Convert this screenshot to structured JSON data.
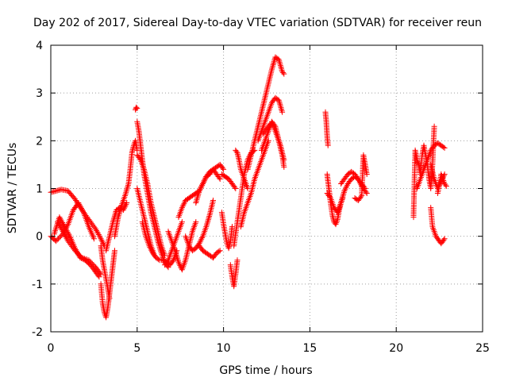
{
  "chart_data": {
    "type": "scatter",
    "title": "Day 202 of 2017, Sidereal Day-to-day VTEC variation (SDTVAR) for receiver reun",
    "xlabel": "GPS time / hours",
    "ylabel": "SDTVAR / TECUs",
    "xlim": [
      0,
      25
    ],
    "ylim": [
      -2,
      4
    ],
    "xticks": [
      "0",
      "5",
      "10",
      "15",
      "20",
      "25"
    ],
    "yticks": [
      "-2",
      "-1",
      "0",
      "1",
      "2",
      "3",
      "4"
    ],
    "grid": true,
    "marker": "+",
    "color": "#ff0000",
    "series": [
      {
        "name": "SDTVAR",
        "tracks": [
          {
            "x": [
              0.0,
              0.3,
              0.6,
              1.0,
              1.4,
              1.8,
              2.2,
              2.6,
              2.9,
              3.1
            ],
            "y": [
              0.92,
              0.95,
              0.98,
              0.95,
              0.78,
              0.55,
              0.35,
              0.15,
              -0.05,
              -0.2
            ]
          },
          {
            "x": [
              0.0,
              0.3,
              0.7,
              1.0,
              1.3,
              1.6,
              1.9,
              2.2,
              2.5
            ],
            "y": [
              0.0,
              -0.1,
              0.05,
              0.25,
              0.55,
              0.7,
              0.5,
              0.2,
              -0.05
            ]
          },
          {
            "x": [
              0.2,
              0.5,
              0.8,
              1.1,
              1.4,
              1.7,
              2.0,
              2.3,
              2.6,
              2.8
            ],
            "y": [
              0.05,
              0.4,
              0.2,
              0.0,
              -0.25,
              -0.45,
              -0.5,
              -0.6,
              -0.75,
              -0.85
            ]
          },
          {
            "x": [
              0.4,
              0.7,
              1.0,
              1.4,
              1.8,
              2.2,
              2.6,
              2.9
            ],
            "y": [
              0.3,
              0.1,
              -0.1,
              -0.3,
              -0.45,
              -0.5,
              -0.65,
              -0.8
            ]
          },
          {
            "x": [
              2.9,
              3.0,
              3.1,
              3.2,
              3.3,
              3.4,
              3.5,
              3.6,
              3.7
            ],
            "y": [
              -1.0,
              -1.4,
              -1.6,
              -1.7,
              -1.5,
              -1.2,
              -0.9,
              -0.6,
              -0.3
            ]
          },
          {
            "x": [
              2.9,
              3.0,
              3.2,
              3.4
            ],
            "y": [
              -0.2,
              -0.5,
              -0.9,
              -1.3
            ]
          },
          {
            "x": [
              3.7,
              3.9,
              4.1,
              4.3,
              4.5,
              4.6,
              4.7,
              4.8,
              4.9,
              5.0
            ],
            "y": [
              0.0,
              0.4,
              0.65,
              0.85,
              1.1,
              1.4,
              1.75,
              1.9,
              2.0,
              1.8
            ]
          },
          {
            "x": [
              3.2,
              3.4,
              3.6,
              3.8,
              4.0,
              4.2,
              4.4
            ],
            "y": [
              -0.3,
              0.0,
              0.3,
              0.55,
              0.6,
              0.55,
              0.7
            ]
          },
          {
            "x": [
              4.9,
              4.95,
              5.0
            ],
            "y": [
              2.65,
              2.7,
              2.68
            ]
          },
          {
            "x": [
              5.0,
              5.1,
              5.2,
              5.3,
              5.4,
              5.6,
              5.8,
              6.0,
              6.2,
              6.4,
              6.6,
              6.8
            ],
            "y": [
              2.4,
              2.2,
              1.9,
              1.6,
              1.3,
              0.9,
              0.5,
              0.2,
              -0.1,
              -0.35,
              -0.55,
              -0.65
            ]
          },
          {
            "x": [
              5.0,
              5.2,
              5.4,
              5.6,
              5.8,
              6.0,
              6.2,
              6.4,
              6.6
            ],
            "y": [
              1.7,
              1.6,
              1.4,
              1.1,
              0.7,
              0.4,
              0.1,
              -0.2,
              -0.4
            ]
          },
          {
            "x": [
              5.0,
              5.2,
              5.4,
              5.6,
              5.8,
              6.0
            ],
            "y": [
              1.0,
              0.7,
              0.4,
              0.1,
              -0.2,
              -0.4
            ]
          },
          {
            "x": [
              5.3,
              5.5,
              5.7,
              5.9,
              6.1,
              6.3,
              6.5,
              6.7,
              6.9,
              7.1,
              7.3
            ],
            "y": [
              0.3,
              0.0,
              -0.2,
              -0.35,
              -0.45,
              -0.5,
              -0.5,
              -0.55,
              -0.6,
              -0.5,
              -0.3
            ]
          },
          {
            "x": [
              6.8,
              7.0,
              7.2,
              7.4,
              7.6,
              7.8,
              8.0,
              8.2,
              8.4
            ],
            "y": [
              0.1,
              -0.1,
              -0.3,
              -0.55,
              -0.7,
              -0.5,
              -0.2,
              0.1,
              0.3
            ]
          },
          {
            "x": [
              6.6,
              6.8,
              7.0,
              7.2,
              7.4,
              7.6
            ],
            "y": [
              -0.6,
              -0.5,
              -0.3,
              -0.1,
              0.1,
              0.3
            ]
          },
          {
            "x": [
              7.4,
              7.6,
              7.8,
              8.0,
              8.2,
              8.4,
              8.6,
              8.8,
              9.0,
              9.2,
              9.4,
              9.6,
              9.8
            ],
            "y": [
              0.4,
              0.6,
              0.75,
              0.8,
              0.85,
              0.9,
              0.95,
              1.1,
              1.25,
              1.35,
              1.4,
              1.3,
              1.2
            ]
          },
          {
            "x": [
              7.8,
              8.0,
              8.2,
              8.4,
              8.6,
              8.8,
              9.0,
              9.2,
              9.4
            ],
            "y": [
              0.0,
              -0.2,
              -0.3,
              -0.25,
              -0.15,
              0.0,
              0.2,
              0.45,
              0.75
            ]
          },
          {
            "x": [
              8.6,
              8.8,
              9.0,
              9.2,
              9.4,
              9.6,
              9.8
            ],
            "y": [
              -0.2,
              -0.3,
              -0.35,
              -0.4,
              -0.45,
              -0.35,
              -0.3
            ]
          },
          {
            "x": [
              8.4,
              8.6,
              8.8,
              9.0,
              9.2,
              9.4,
              9.6,
              9.8,
              10.0
            ],
            "y": [
              0.7,
              0.95,
              1.1,
              1.25,
              1.3,
              1.4,
              1.45,
              1.5,
              1.4
            ]
          },
          {
            "x": [
              9.9,
              10.1,
              10.3,
              10.5,
              10.7
            ],
            "y": [
              1.3,
              1.25,
              1.2,
              1.1,
              1.0
            ]
          },
          {
            "x": [
              9.9,
              10.0,
              10.1,
              10.2,
              10.3,
              10.4,
              10.5
            ],
            "y": [
              0.5,
              0.25,
              0.05,
              -0.15,
              -0.25,
              -0.1,
              0.2
            ]
          },
          {
            "x": [
              10.4,
              10.5,
              10.6,
              10.7,
              10.8
            ],
            "y": [
              -0.6,
              -0.85,
              -1.05,
              -0.8,
              -0.5
            ]
          },
          {
            "x": [
              10.6,
              10.8,
              11.0,
              11.2,
              11.4,
              11.6,
              11.8
            ],
            "y": [
              -0.2,
              0.3,
              0.8,
              1.3,
              1.6,
              1.75,
              1.8
            ]
          },
          {
            "x": [
              10.7,
              10.8,
              10.9,
              11.0,
              11.2,
              11.4
            ],
            "y": [
              1.8,
              1.75,
              1.6,
              1.4,
              1.2,
              1.0
            ]
          },
          {
            "x": [
              11.0,
              11.2,
              11.4,
              11.6,
              11.8,
              12.0,
              12.2,
              12.4,
              12.6
            ],
            "y": [
              0.2,
              0.5,
              0.7,
              0.9,
              1.2,
              1.4,
              1.6,
              1.8,
              2.0
            ]
          },
          {
            "x": [
              11.4,
              11.6,
              11.8,
              12.0,
              12.2,
              12.4,
              12.6,
              12.8,
              13.0,
              13.2,
              13.4,
              13.5
            ],
            "y": [
              1.4,
              1.7,
              2.0,
              2.3,
              2.6,
              2.9,
              3.2,
              3.5,
              3.75,
              3.7,
              3.45,
              3.4
            ]
          },
          {
            "x": [
              12.0,
              12.2,
              12.4,
              12.6,
              12.8,
              13.0,
              13.2,
              13.4
            ],
            "y": [
              2.0,
              2.2,
              2.4,
              2.6,
              2.8,
              2.9,
              2.85,
              2.6
            ]
          },
          {
            "x": [
              12.2,
              12.4,
              12.6,
              12.8,
              13.0,
              13.2,
              13.4,
              13.5
            ],
            "y": [
              1.8,
              2.0,
              2.2,
              2.4,
              2.3,
              2.0,
              1.7,
              1.45
            ]
          },
          {
            "x": [
              12.3,
              12.5,
              12.7,
              12.9,
              13.1,
              13.3,
              13.5
            ],
            "y": [
              2.15,
              2.25,
              2.35,
              2.3,
              2.1,
              1.9,
              1.6
            ]
          },
          {
            "x": [
              15.9,
              15.95,
              16.0,
              16.05
            ],
            "y": [
              2.6,
              2.4,
              2.1,
              1.9
            ]
          },
          {
            "x": [
              16.0,
              16.1,
              16.2,
              16.3,
              16.4,
              16.5,
              16.6,
              16.7,
              16.8,
              16.9
            ],
            "y": [
              1.3,
              1.0,
              0.7,
              0.45,
              0.3,
              0.25,
              0.35,
              0.55,
              0.7,
              0.8
            ]
          },
          {
            "x": [
              16.0,
              16.2,
              16.4,
              16.6,
              16.8,
              17.0,
              17.2,
              17.4,
              17.6,
              17.8,
              18.0,
              18.2
            ],
            "y": [
              0.9,
              0.8,
              0.6,
              0.5,
              0.7,
              0.95,
              1.1,
              1.2,
              1.25,
              1.2,
              1.1,
              1.0
            ]
          },
          {
            "x": [
              16.8,
              17.0,
              17.2,
              17.4,
              17.6,
              17.8,
              18.0,
              18.2,
              18.3
            ],
            "y": [
              1.1,
              1.2,
              1.3,
              1.35,
              1.3,
              1.2,
              1.05,
              0.95,
              0.9
            ]
          },
          {
            "x": [
              17.6,
              17.8,
              18.0,
              18.1,
              18.2,
              18.3
            ],
            "y": [
              0.8,
              0.75,
              0.85,
              1.7,
              1.5,
              1.3
            ]
          },
          {
            "x": [
              21.0,
              21.1,
              21.2,
              21.3,
              21.4,
              21.5,
              21.6,
              21.7,
              21.8,
              21.9,
              22.0,
              22.1,
              22.2
            ],
            "y": [
              0.4,
              1.8,
              1.6,
              1.5,
              1.3,
              1.7,
              1.9,
              1.7,
              1.5,
              1.2,
              1.0,
              1.5,
              2.3
            ]
          },
          {
            "x": [
              21.2,
              21.4,
              21.6,
              21.8,
              22.0,
              22.2,
              22.4,
              22.6,
              22.8
            ],
            "y": [
              1.0,
              1.2,
              1.4,
              1.6,
              1.8,
              1.9,
              1.95,
              1.9,
              1.85
            ]
          },
          {
            "x": [
              22.0,
              22.2,
              22.4,
              22.6,
              22.8
            ],
            "y": [
              1.5,
              1.2,
              1.0,
              1.15,
              1.3
            ]
          },
          {
            "x": [
              22.0,
              22.1,
              22.2,
              22.3,
              22.4,
              22.5,
              22.6,
              22.7,
              22.8
            ],
            "y": [
              0.6,
              0.2,
              0.1,
              0.0,
              -0.05,
              -0.1,
              -0.15,
              -0.1,
              -0.05
            ]
          },
          {
            "x": [
              22.4,
              22.5,
              22.6,
              22.7,
              22.8,
              22.9
            ],
            "y": [
              0.9,
              1.1,
              1.3,
              1.2,
              1.1,
              1.05
            ]
          }
        ]
      }
    ]
  }
}
